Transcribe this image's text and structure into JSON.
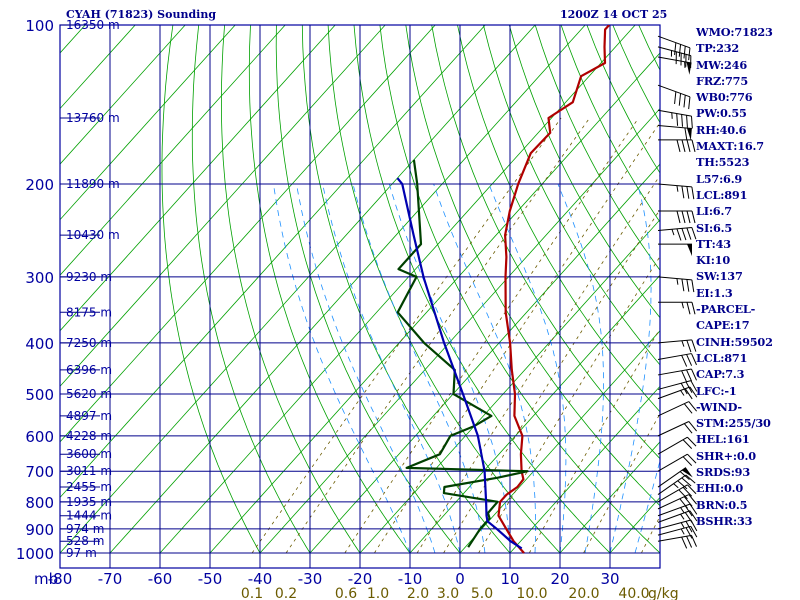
{
  "header": {
    "title": "CYAH (71823) Sounding",
    "time": "1200Z 14 OCT 25"
  },
  "indices": [
    "WMO:71823",
    "TP:232",
    "MW:246",
    "FRZ:775",
    "WB0:776",
    "PW:0.55",
    "RH:40.6",
    "MAXT:16.7",
    "TH:5523",
    "L57:6.9",
    "LCL:891",
    "LI:6.7",
    "SI:6.5",
    "TT:43",
    "KI:10",
    "SW:137",
    "EI:1.3",
    "-PARCEL-",
    "CAPE:17",
    "CINH:59502",
    "LCL:871",
    "CAP:7.3",
    "LFC:-1",
    "-WIND-",
    "STM:255/30",
    "HEL:161",
    "SHR+:0.0",
    "SRDS:93",
    "EHI:0.0",
    "BRN:0.5",
    "BSHR:33"
  ],
  "colors": {
    "frame": "#0000a0",
    "grid": "#00008b",
    "isotherm": "#00a000",
    "dry_adiabat": "#00a000",
    "moist_adiabat": "#1e90ff",
    "mixing_ratio": "#6b5b00",
    "temperature": "#b00000",
    "dewpoint": "#004000",
    "parcel": "#0000b0",
    "label": "#0000a0",
    "mixing_label": "#6b5b00",
    "barb": "#000000"
  },
  "chart_data": {
    "type": "line",
    "title": "CYAH (71823) Sounding",
    "time": "1200Z 14 OCT 25",
    "xlabel": "",
    "ylabel": "mb",
    "xlim": [
      -80,
      40
    ],
    "ylim": [
      1000,
      100
    ],
    "y_scale": "log",
    "skew": true,
    "x_ticks": [
      -80,
      -70,
      -60,
      -50,
      -40,
      -30,
      -20,
      -10,
      0,
      10,
      20,
      30
    ],
    "x_tick_labels": [
      "-80",
      "-70",
      "-60",
      "-50",
      "-40",
      "-30",
      "-20",
      "-10",
      "0",
      "10",
      "20",
      "30"
    ],
    "pressure_ticks": [
      100,
      200,
      300,
      400,
      500,
      600,
      700,
      800,
      900,
      1000
    ],
    "y_axis_unit": "mb",
    "heights": [
      {
        "p": 100,
        "label": "16350 m"
      },
      {
        "p": 150,
        "label": "13760 m"
      },
      {
        "p": 200,
        "label": "11890 m"
      },
      {
        "p": 250,
        "label": "10430 m"
      },
      {
        "p": 300,
        "label": "9230 m"
      },
      {
        "p": 350,
        "label": "8175 m"
      },
      {
        "p": 400,
        "label": "7250 m"
      },
      {
        "p": 450,
        "label": "6396 m"
      },
      {
        "p": 500,
        "label": "5620 m"
      },
      {
        "p": 550,
        "label": "4897 m"
      },
      {
        "p": 600,
        "label": "4228 m"
      },
      {
        "p": 650,
        "label": "3600 m"
      },
      {
        "p": 700,
        "label": "3011 m"
      },
      {
        "p": 750,
        "label": "2455 m"
      },
      {
        "p": 800,
        "label": "1935 m"
      },
      {
        "p": 850,
        "label": "1444 m"
      },
      {
        "p": 900,
        "label": "974 m"
      },
      {
        "p": 950,
        "label": "528 m"
      },
      {
        "p": 1000,
        "label": "97 m"
      }
    ],
    "mixing_ratio_lines": [
      0.1,
      0.2,
      0.6,
      1.0,
      2.0,
      3.0,
      5.0,
      10.0,
      20.0,
      40.0
    ],
    "mixing_ratio_labels": [
      "0.1",
      "0.2",
      "0.6",
      "1.0",
      "2.0",
      "3.0",
      "5.0",
      "10.0",
      "20.0",
      "40.0"
    ],
    "mixing_ratio_unit": "g/kg",
    "series": [
      {
        "key": "temperature",
        "points": [
          [
            1000,
            12.8
          ],
          [
            950,
            8.6
          ],
          [
            900,
            4.9
          ],
          [
            850,
            1.0
          ],
          [
            800,
            -1.2
          ],
          [
            775,
            -1.2
          ],
          [
            750,
            -0.4
          ],
          [
            725,
            -0.6
          ],
          [
            700,
            -2.4
          ],
          [
            650,
            -5.6
          ],
          [
            600,
            -8.6
          ],
          [
            550,
            -13.8
          ],
          [
            500,
            -17.6
          ],
          [
            450,
            -22.6
          ],
          [
            400,
            -27.8
          ],
          [
            350,
            -34.2
          ],
          [
            300,
            -40.6
          ],
          [
            275,
            -44.0
          ],
          [
            250,
            -48.2
          ],
          [
            225,
            -51.6
          ],
          [
            200,
            -54.8
          ],
          [
            175,
            -57.8
          ],
          [
            160,
            -57.6
          ],
          [
            150,
            -60.6
          ],
          [
            140,
            -58.6
          ],
          [
            125,
            -61.6
          ],
          [
            118,
            -59.2
          ],
          [
            110,
            -62.2
          ],
          [
            102,
            -65.2
          ],
          [
            100,
            -65.2
          ]
        ]
      },
      {
        "key": "dewpoint",
        "points": [
          [
            975,
            0.6
          ],
          [
            950,
            0.3
          ],
          [
            900,
            -0.3
          ],
          [
            860,
            -0.3
          ],
          [
            840,
            -1.6
          ],
          [
            800,
            -1.7
          ],
          [
            770,
            -14.0
          ],
          [
            750,
            -15.0
          ],
          [
            720,
            -6.0
          ],
          [
            700,
            -1.2
          ],
          [
            690,
            -26.0
          ],
          [
            650,
            -21.8
          ],
          [
            600,
            -23.0
          ],
          [
            575,
            -20.0
          ],
          [
            550,
            -18.4
          ],
          [
            500,
            -29.9
          ],
          [
            450,
            -34.0
          ],
          [
            400,
            -45.0
          ],
          [
            350,
            -55.8
          ],
          [
            300,
            -58.4
          ],
          [
            290,
            -63.4
          ],
          [
            260,
            -63.4
          ],
          [
            200,
            -75.0
          ],
          [
            180,
            -80.0
          ]
        ]
      },
      {
        "key": "parcel",
        "points": [
          [
            980,
            11.5
          ],
          [
            950,
            8.0
          ],
          [
            900,
            3.0
          ],
          [
            871,
            -0.2
          ],
          [
            850,
            -1.4
          ],
          [
            800,
            -4.0
          ],
          [
            700,
            -9.8
          ],
          [
            600,
            -17.5
          ],
          [
            500,
            -28.0
          ],
          [
            400,
            -41.0
          ],
          [
            300,
            -57.0
          ],
          [
            250,
            -66.5
          ],
          [
            200,
            -78.0
          ],
          [
            195,
            -80.0
          ]
        ]
      }
    ],
    "wind_barbs": [
      {
        "p": 105,
        "dir": 290,
        "spd": 40
      },
      {
        "p": 110,
        "dir": 285,
        "spd": 45
      },
      {
        "p": 115,
        "dir": 280,
        "spd": 55
      },
      {
        "p": 130,
        "dir": 290,
        "spd": 40
      },
      {
        "p": 145,
        "dir": 280,
        "spd": 45
      },
      {
        "p": 155,
        "dir": 275,
        "spd": 60
      },
      {
        "p": 165,
        "dir": 270,
        "spd": 40
      },
      {
        "p": 200,
        "dir": 275,
        "spd": 35
      },
      {
        "p": 225,
        "dir": 270,
        "spd": 40
      },
      {
        "p": 245,
        "dir": 265,
        "spd": 45
      },
      {
        "p": 260,
        "dir": 270,
        "spd": 50
      },
      {
        "p": 300,
        "dir": 275,
        "spd": 35
      },
      {
        "p": 335,
        "dir": 270,
        "spd": 25
      },
      {
        "p": 400,
        "dir": 265,
        "spd": 25
      },
      {
        "p": 430,
        "dir": 260,
        "spd": 30
      },
      {
        "p": 460,
        "dir": 260,
        "spd": 30
      },
      {
        "p": 490,
        "dir": 255,
        "spd": 30
      },
      {
        "p": 510,
        "dir": 250,
        "spd": 25
      },
      {
        "p": 550,
        "dir": 245,
        "spd": 20
      },
      {
        "p": 600,
        "dir": 245,
        "spd": 20
      },
      {
        "p": 650,
        "dir": 240,
        "spd": 20
      },
      {
        "p": 700,
        "dir": 240,
        "spd": 20
      },
      {
        "p": 750,
        "dir": 235,
        "spd": 60
      },
      {
        "p": 775,
        "dir": 235,
        "spd": 35
      },
      {
        "p": 800,
        "dir": 240,
        "spd": 30
      },
      {
        "p": 825,
        "dir": 245,
        "spd": 30
      },
      {
        "p": 850,
        "dir": 250,
        "spd": 25
      },
      {
        "p": 875,
        "dir": 250,
        "spd": 25
      },
      {
        "p": 900,
        "dir": 255,
        "spd": 25
      },
      {
        "p": 925,
        "dir": 255,
        "spd": 25
      },
      {
        "p": 950,
        "dir": 260,
        "spd": 30
      }
    ]
  }
}
